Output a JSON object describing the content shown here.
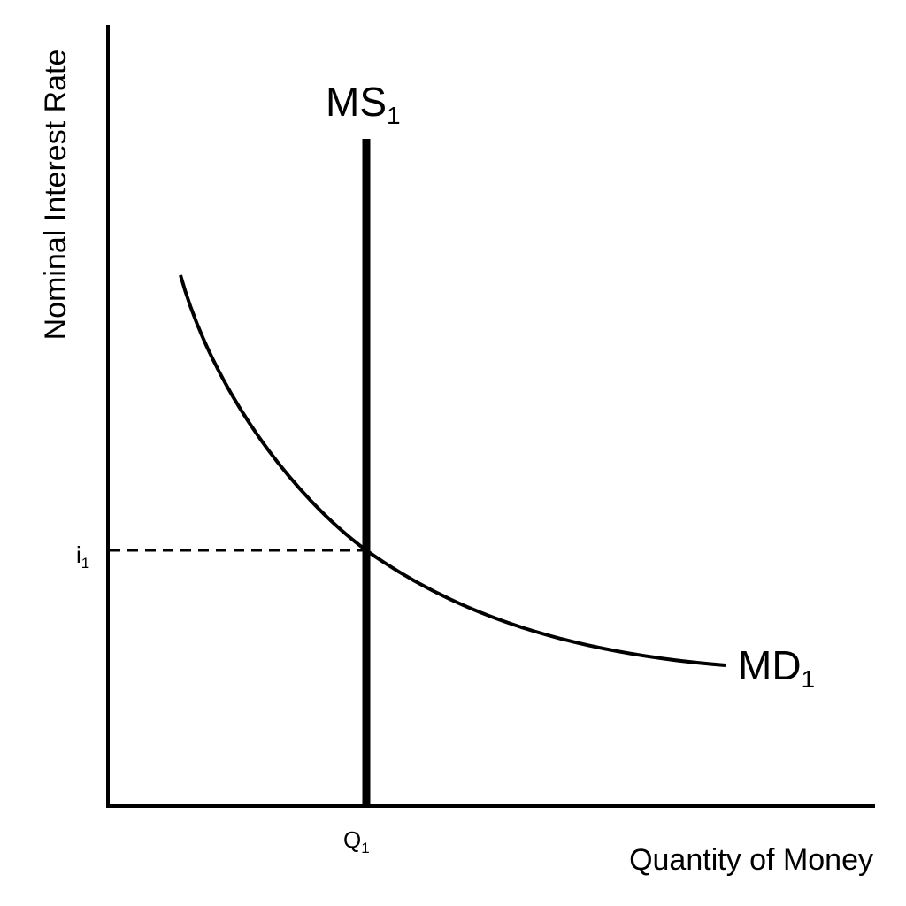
{
  "diagram": {
    "y_axis_label": "Nominal Interest Rate",
    "x_axis_label": "Quantity of Money",
    "supply_curve": {
      "main": "MS",
      "sub": "1"
    },
    "demand_curve": {
      "main": "MD",
      "sub": "1"
    },
    "equilibrium_rate": {
      "main": "i",
      "sub": "1"
    },
    "equilibrium_quantity": {
      "main": "Q",
      "sub": "1"
    }
  }
}
